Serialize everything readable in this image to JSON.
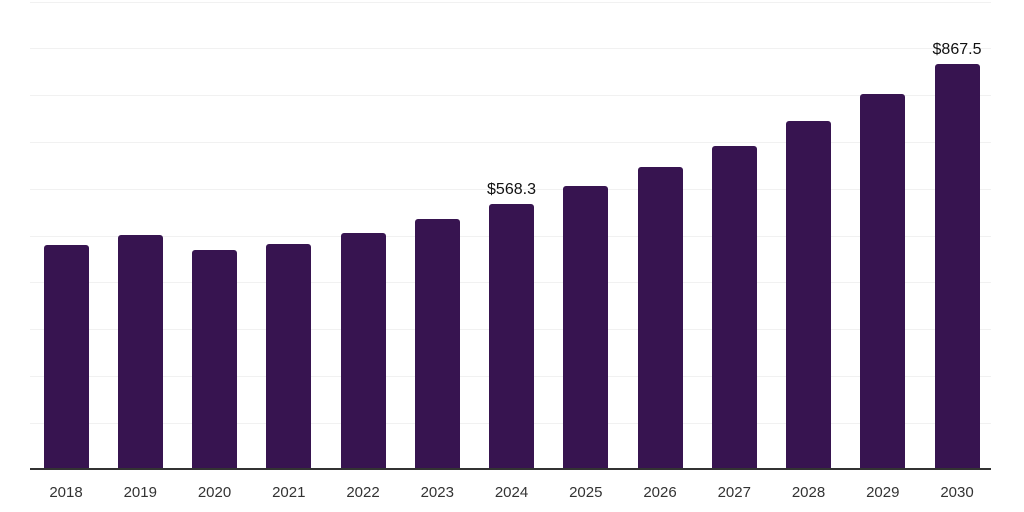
{
  "chart_data": {
    "type": "bar",
    "categories": [
      "2018",
      "2019",
      "2020",
      "2021",
      "2022",
      "2023",
      "2024",
      "2025",
      "2026",
      "2027",
      "2028",
      "2029",
      "2030"
    ],
    "values": [
      480,
      503,
      470,
      482,
      507,
      537,
      568.3,
      607,
      647,
      692,
      746,
      803,
      867.5
    ],
    "data_labels": [
      "",
      "",
      "",
      "",
      "",
      "",
      "$568.3",
      "",
      "",
      "",
      "",
      "",
      "$867.5"
    ],
    "ylim": [
      0,
      1000
    ],
    "gridline_step": 100,
    "grid": "horizontal",
    "legend": "none",
    "y_axis_labels_visible": false,
    "colors": {
      "bar": "#371450",
      "gridline": "#f1f1f1",
      "axis_line": "#333333",
      "tick_label": "#333333",
      "data_label": "#111111",
      "background": "#ffffff"
    }
  }
}
